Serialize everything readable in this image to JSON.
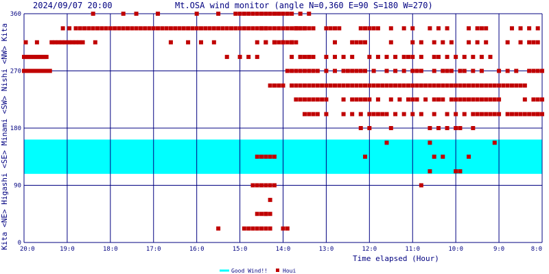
{
  "header": {
    "datetime": "2024/09/07 20:00",
    "title": "Mt.OSA wind monitor (angle N=0,360 E=90 S=180 W=270)"
  },
  "y_axis_label": "Kita  <NE>  Higashi  <SE>  Minami  <SW>  Nishi  <NW>  Kita",
  "legend": [
    {
      "label": "Good Wind!!",
      "color": "#00ffff",
      "kind": "line"
    },
    {
      "label": "Houi",
      "color": "#c00000",
      "kind": "square"
    }
  ],
  "chart_data": {
    "type": "scatter",
    "xlabel": "Time elapsed (Hour)",
    "ylabel": "Kita  <NE>  Higashi  <SE>  Minami  <SW>  Nishi  <NW>  Kita",
    "x_ticks": [
      "20:0",
      "19:0",
      "18:0",
      "17:0",
      "16:0",
      "15:0",
      "14:0",
      "13:0",
      "12:0",
      "11:0",
      "10:0",
      "9:0",
      "8:0"
    ],
    "y_ticks": [
      0,
      90,
      180,
      270,
      360
    ],
    "ylim": [
      0,
      360
    ],
    "x_range_hours": [
      0,
      12
    ],
    "x_direction": "hours elapsed from 20:00 (left) back to 8:00 (right)",
    "good_wind_band": [
      108,
      162
    ],
    "good_wind_color": "#00ffff",
    "series": [
      {
        "name": "Houi",
        "color": "#c00000",
        "x": [
          0.0,
          0.04,
          0.08,
          0.12,
          0.16,
          0.2,
          0.24,
          0.28,
          0.32,
          0.36,
          0.4,
          0.44,
          0.48,
          0.52,
          0.0,
          0.08,
          0.16,
          0.24,
          0.32,
          0.4,
          0.48,
          0.56,
          0.6,
          0.04,
          0.3,
          0.64,
          0.72,
          0.8,
          0.88,
          0.96,
          1.04,
          1.12,
          1.2,
          1.28,
          1.36,
          0.9,
          1.05,
          1.2,
          1.3,
          1.4,
          1.5,
          1.6,
          1.7,
          1.8,
          1.9,
          2.0,
          2.1,
          2.2,
          2.3,
          2.4,
          2.5,
          2.6,
          2.7,
          2.8,
          2.9,
          3.0,
          3.1,
          3.2,
          3.3,
          3.4,
          3.5,
          3.6,
          3.7,
          3.8,
          3.9,
          4.0,
          4.1,
          4.2,
          4.3,
          4.4,
          4.5,
          4.6,
          4.7,
          4.8,
          4.9,
          5.0,
          5.1,
          5.2,
          5.3,
          5.4,
          5.5,
          5.6,
          5.7,
          5.8,
          5.9,
          6.0,
          1.6,
          2.3,
          2.6,
          3.1,
          3.4,
          3.8,
          4.1,
          4.4,
          1.65,
          3.1,
          4.0,
          4.5,
          4.9,
          5.0,
          5.1,
          5.2,
          5.3,
          5.4,
          5.5,
          5.6,
          5.8,
          5.9,
          6.0,
          6.1,
          6.2,
          6.3,
          6.4,
          6.5,
          6.6,
          5.5,
          5.6,
          5.7,
          5.8,
          5.9,
          6.0,
          6.1,
          6.2,
          6.3,
          6.4,
          6.5,
          6.6,
          6.7,
          4.7,
          5.0,
          5.2,
          5.4,
          5.6,
          5.8,
          6.0,
          6.2,
          5.4,
          5.6,
          5.8,
          5.9,
          6.0,
          6.2,
          6.4,
          6.6,
          5.6,
          5.7,
          5.8,
          5.9,
          6.0,
          6.2,
          6.3,
          6.4,
          6.5,
          6.6,
          6.7,
          6.8,
          6.9,
          7.0,
          7.1,
          7.2,
          7.3,
          7.4,
          7.5,
          7.6,
          7.7,
          7.8,
          7.9,
          8.0,
          8.1,
          8.2,
          8.3,
          8.4,
          8.5,
          8.6,
          8.7,
          8.8,
          8.9,
          9.0,
          9.1,
          9.2,
          9.3,
          9.4,
          9.5,
          9.6,
          9.7,
          9.8,
          9.9,
          10.0,
          10.1,
          10.2,
          10.3,
          10.4,
          10.5,
          10.6,
          10.7,
          10.8,
          10.9,
          11.0,
          11.1,
          11.2,
          11.3,
          11.4,
          11.5,
          11.6,
          11.7,
          11.8,
          11.9,
          12.0,
          6.1,
          6.2,
          6.3,
          6.4,
          6.5,
          6.6,
          6.7,
          6.8,
          7.0,
          7.2,
          7.4,
          7.5,
          7.6,
          7.7,
          7.8,
          7.9,
          8.1,
          8.4,
          8.6,
          8.8,
          9.0,
          9.1,
          9.2,
          9.5,
          9.7,
          9.8,
          9.9,
          10.1,
          10.2,
          10.4,
          10.6,
          11.0,
          11.2,
          11.4,
          11.6,
          11.8,
          11.9,
          12.0,
          6.3,
          6.4,
          6.5,
          6.6,
          6.7,
          6.8,
          6.9,
          7.0,
          7.4,
          7.6,
          7.7,
          7.8,
          7.9,
          8.0,
          8.2,
          8.5,
          8.7,
          8.9,
          9.0,
          9.1,
          9.3,
          9.5,
          9.6,
          9.7,
          9.9,
          10.0,
          10.1,
          10.2,
          10.3,
          10.4,
          10.5,
          10.6,
          10.7,
          10.8,
          10.9,
          11.0,
          11.3,
          11.5,
          11.7,
          11.9,
          6.5,
          6.6,
          6.7,
          6.8,
          7.0,
          7.4,
          7.6,
          7.8,
          8.0,
          8.1,
          8.2,
          8.3,
          8.4,
          8.6,
          8.8,
          9.0,
          9.2,
          9.5,
          9.8,
          10.0,
          10.2,
          10.4,
          10.5,
          10.6,
          10.7,
          10.8,
          10.9,
          11.0,
          11.2,
          11.4,
          11.6,
          11.8,
          11.9,
          12.0,
          6.2,
          6.4,
          6.6,
          7.0,
          7.2,
          7.4,
          7.6,
          8.0,
          8.2,
          8.4,
          8.6,
          8.8,
          8.9,
          9.0,
          9.2,
          9.5,
          9.6,
          9.8,
          10.0,
          10.2,
          10.4,
          10.6,
          10.8,
          6.0,
          6.1,
          6.2,
          6.3,
          7.2,
          7.6,
          7.7,
          7.8,
          7.9,
          8.5,
          9.0,
          9.2,
          9.5,
          9.7,
          9.9,
          10.3,
          10.5,
          10.7,
          11.2,
          11.5,
          11.7,
          11.8,
          11.9,
          6.3,
          6.4,
          6.5,
          6.7,
          7.0,
          7.1,
          7.2,
          7.3,
          7.8,
          7.9,
          8.0,
          8.1,
          8.2,
          8.5,
          8.8,
          9.0,
          9.4,
          9.6,
          9.8,
          10.3,
          10.5,
          10.6,
          10.7,
          11.3,
          11.5,
          11.7,
          11.9,
          7.8,
          8.0,
          8.5,
          9.6,
          9.4,
          9.8,
          10.0,
          10.1,
          10.4,
          8.4,
          9.4,
          10.9,
          7.9,
          9.5,
          9.7,
          10.3,
          9.4,
          10.0,
          10.1,
          9.2,
          5.4,
          5.5,
          5.6,
          5.7,
          5.8,
          5.3,
          5.4,
          5.5,
          5.6,
          5.7,
          5.8,
          5.1,
          5.2,
          5.3,
          5.4,
          5.5,
          5.6,
          5.7,
          6.0,
          6.1,
          4.5,
          5.7,
          5.4,
          5.5,
          5.6,
          5.7,
          5.6
        ],
        "y": [
          292,
          292,
          292,
          292,
          292,
          292,
          292,
          292,
          292,
          292,
          292,
          292,
          292,
          292,
          270,
          270,
          270,
          270,
          270,
          270,
          270,
          270,
          270,
          315,
          315,
          315,
          315,
          315,
          315,
          315,
          315,
          315,
          315,
          315,
          315,
          337,
          337,
          337,
          337,
          337,
          337,
          337,
          337,
          337,
          337,
          337,
          337,
          337,
          337,
          337,
          337,
          337,
          337,
          337,
          337,
          337,
          337,
          337,
          337,
          337,
          337,
          337,
          337,
          337,
          337,
          337,
          337,
          337,
          337,
          337,
          337,
          337,
          337,
          337,
          337,
          337,
          337,
          337,
          337,
          337,
          337,
          337,
          360,
          360,
          360,
          360,
          360,
          360,
          360,
          360,
          315,
          315,
          315,
          315,
          315,
          360,
          360,
          360,
          360,
          360,
          360,
          360,
          360,
          360,
          360,
          360,
          360,
          360,
          360,
          360,
          360,
          337,
          337,
          337,
          337,
          337,
          337,
          337,
          337,
          337,
          337,
          337,
          337,
          337,
          292,
          292,
          292,
          292,
          292,
          292,
          292,
          292,
          315,
          315,
          315,
          315,
          315,
          315,
          315,
          315,
          360,
          360,
          360,
          360,
          360,
          247,
          247,
          247,
          247,
          247,
          247,
          247,
          247,
          247,
          247,
          247,
          247,
          247,
          247,
          247,
          247,
          247,
          247,
          247,
          247,
          247,
          247,
          247,
          247,
          247,
          247,
          247,
          247,
          247,
          247,
          247,
          247,
          247,
          247,
          247,
          247,
          247,
          247,
          247,
          247,
          247,
          247,
          247,
          247,
          247,
          247,
          247,
          247,
          247,
          247,
          247,
          247,
          247,
          247,
          247,
          247,
          247,
          247,
          247,
          270,
          270,
          270,
          270,
          270,
          270,
          270,
          270,
          270,
          270,
          270,
          270,
          270,
          270,
          270,
          270,
          270,
          270,
          270,
          270,
          270,
          270,
          270,
          270,
          270,
          270,
          270,
          270,
          270,
          270,
          270,
          270,
          270,
          270,
          270,
          270,
          270,
          270,
          225,
          225,
          225,
          225,
          225,
          225,
          225,
          225,
          225,
          225,
          225,
          225,
          225,
          225,
          225,
          225,
          225,
          225,
          225,
          225,
          225,
          225,
          225,
          225,
          225,
          225,
          225,
          225,
          225,
          225,
          225,
          225,
          225,
          225,
          225,
          225,
          225,
          225,
          225,
          225,
          202,
          202,
          202,
          202,
          202,
          202,
          202,
          202,
          202,
          202,
          202,
          202,
          202,
          202,
          202,
          202,
          202,
          202,
          202,
          202,
          202,
          202,
          202,
          202,
          202,
          202,
          202,
          202,
          202,
          202,
          202,
          202,
          202,
          202,
          202,
          202,
          202,
          202,
          292,
          292,
          292,
          292,
          292,
          292,
          292,
          292,
          292,
          292,
          292,
          292,
          292,
          292,
          292,
          292,
          292,
          292,
          292,
          292,
          292,
          292,
          292,
          315,
          315,
          315,
          315,
          315,
          315,
          315,
          315,
          315,
          315,
          315,
          315,
          315,
          315,
          315,
          315,
          315,
          315,
          315,
          315,
          315,
          315,
          315,
          337,
          337,
          337,
          337,
          337,
          337,
          337,
          337,
          337,
          337,
          337,
          337,
          337,
          337,
          337,
          337,
          337,
          337,
          337,
          337,
          337,
          337,
          337,
          337,
          337,
          337,
          337,
          180,
          180,
          180,
          180,
          180,
          180,
          180,
          180,
          180,
          157,
          157,
          157,
          135,
          135,
          135,
          135,
          112,
          112,
          112,
          90,
          135,
          135,
          135,
          135,
          135,
          90,
          90,
          90,
          90,
          90,
          90,
          22,
          22,
          22,
          22,
          22,
          22,
          22,
          22,
          22,
          22,
          67,
          45,
          45,
          45,
          45,
          45
        ]
      }
    ]
  }
}
